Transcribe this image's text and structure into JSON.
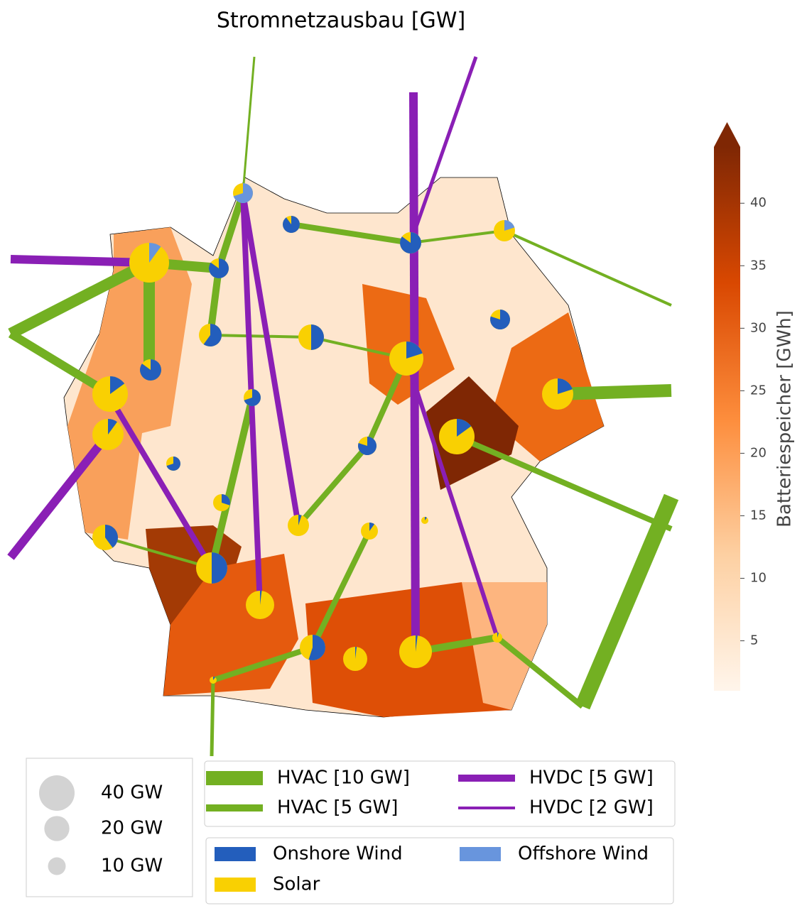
{
  "title": "Stromnetzausbau [GW]",
  "colorbar": {
    "label": "Batteriespeicher [GWh]",
    "lim": [
      1,
      44.5
    ],
    "ticks": [
      5,
      10,
      15,
      20,
      25,
      30,
      35,
      40
    ],
    "colors": [
      "#fff5eb",
      "#fdd0a2",
      "#fd8d3c",
      "#d94801",
      "#7f2704"
    ]
  },
  "size_legend": [
    {
      "value": 40,
      "label": "40 GW"
    },
    {
      "value": 20,
      "label": "20 GW"
    },
    {
      "value": 10,
      "label": "10 GW"
    }
  ],
  "line_legend": [
    {
      "label": "HVAC [10 GW]",
      "color": "#73b022",
      "width": 10
    },
    {
      "label": "HVDC [5 GW]",
      "color": "#8a1fb5",
      "width": 5
    },
    {
      "label": "HVAC [5 GW]",
      "color": "#73b022",
      "width": 5
    },
    {
      "label": "HVDC [2 GW]",
      "color": "#8a1fb5",
      "width": 2
    }
  ],
  "carrier_legend": [
    {
      "label": "Onshore Wind",
      "color": "#235ebc"
    },
    {
      "label": "Offshore Wind",
      "color": "#6895dd"
    },
    {
      "label": "Solar",
      "color": "#f9d002"
    }
  ]
}
